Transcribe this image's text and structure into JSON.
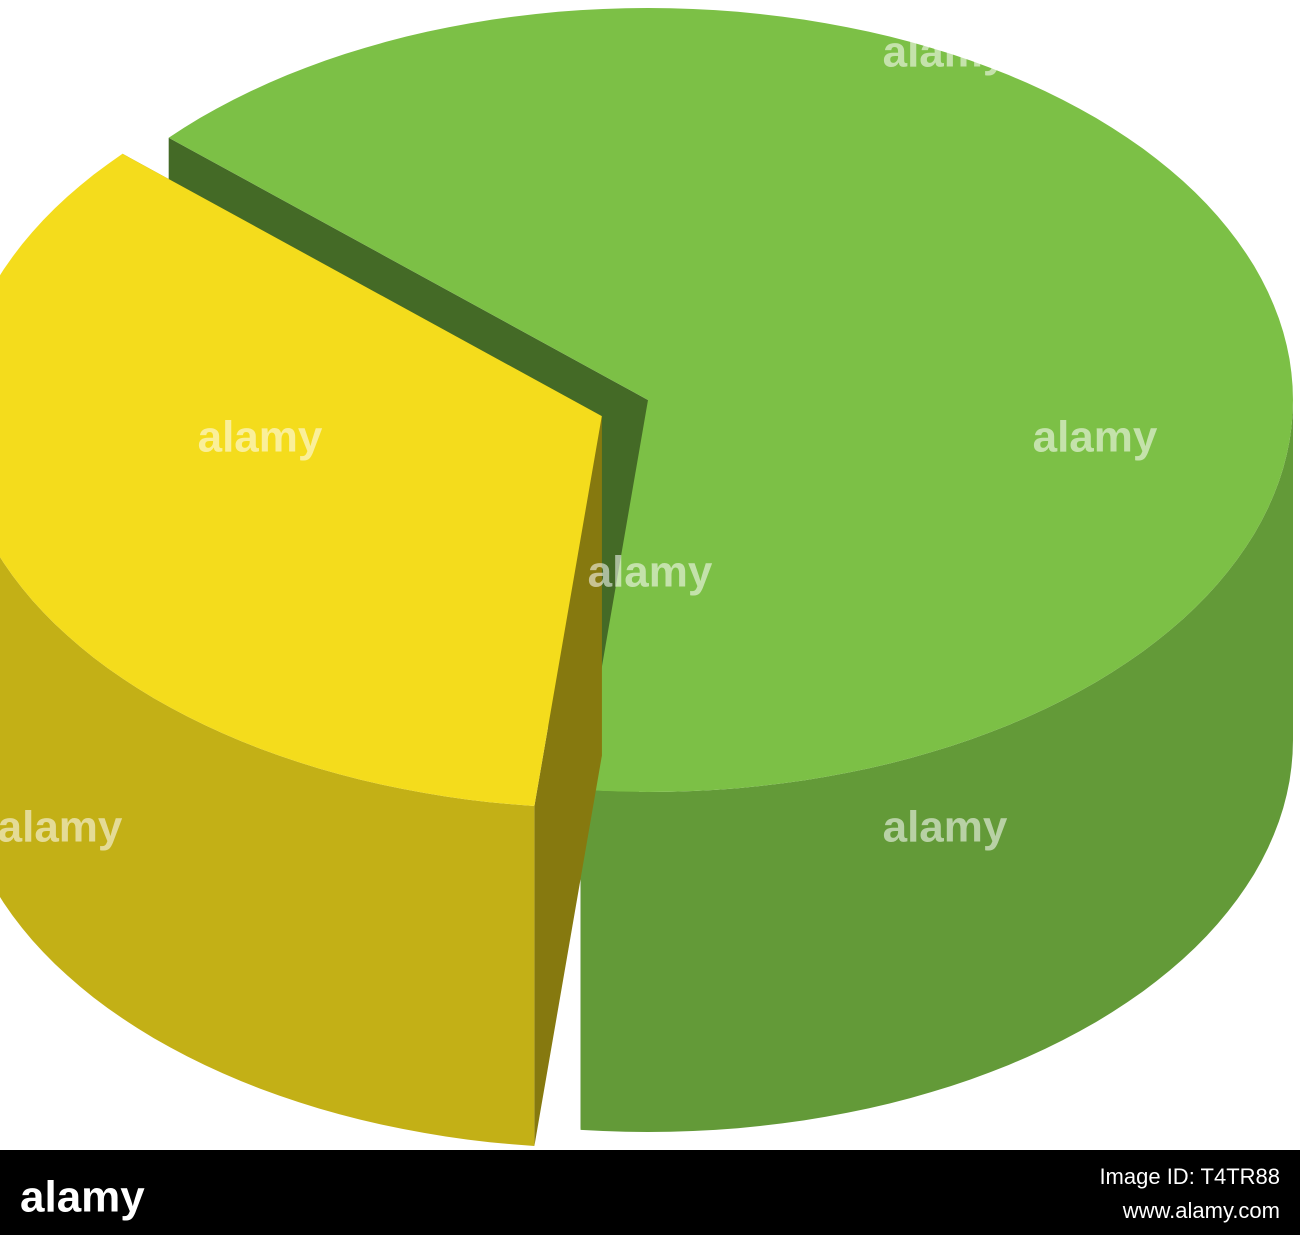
{
  "chart_data": {
    "type": "pie3d",
    "values": [
      35,
      65
    ],
    "colors": [
      "#f4dc1c",
      "#7cc046"
    ]
  },
  "watermark": "alamy",
  "footer": {
    "logo": "alamy",
    "image_id": "Image ID: T4TR88",
    "url": "www.alamy.com"
  }
}
